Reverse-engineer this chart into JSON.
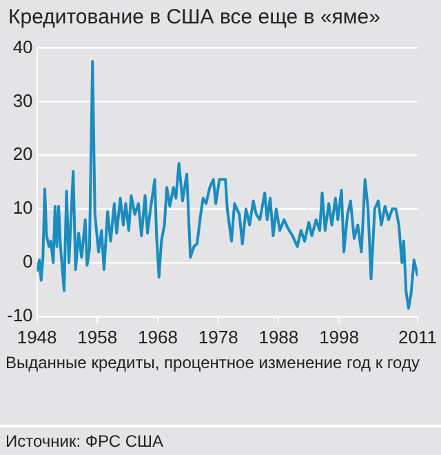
{
  "chart_data": {
    "type": "line",
    "title": "Кредитование в США все еще в «яме»",
    "xlabel": "Выданные кредиты, процентное изменение год к году",
    "annotations": [
      "Источник: ФРС США"
    ],
    "xlim": [
      1948,
      2011
    ],
    "xticks": [
      1948,
      1958,
      1968,
      1978,
      1988,
      1998,
      2011
    ],
    "ylim": [
      -10,
      40
    ],
    "yticks": [
      -10,
      0,
      10,
      20,
      30,
      40
    ],
    "grid": "y",
    "legend": false,
    "marker": "none",
    "line_style": "solid",
    "series": [
      {
        "color": "#1a8cc0",
        "x": [
          1948.0,
          1948.4,
          1948.7,
          1949.0,
          1949.3,
          1949.6,
          1950.0,
          1950.3,
          1950.7,
          1951.0,
          1951.3,
          1951.6,
          1951.9,
          1952.5,
          1952.9,
          1953.3,
          1954.0,
          1954.4,
          1954.9,
          1955.4,
          1956.0,
          1956.3,
          1956.7,
          1957.2,
          1957.6,
          1958.2,
          1958.7,
          1959.1,
          1959.7,
          1960.2,
          1960.8,
          1961.2,
          1961.8,
          1962.3,
          1962.7,
          1963.2,
          1963.6,
          1964.2,
          1964.8,
          1965.3,
          1965.9,
          1966.3,
          1966.8,
          1967.5,
          1967.8,
          1968.2,
          1968.6,
          1969.1,
          1969.5,
          1970.0,
          1970.6,
          1971.0,
          1971.5,
          1972.1,
          1972.8,
          1973.4,
          1974.0,
          1974.5,
          1975.1,
          1975.5,
          1976.0,
          1976.6,
          1977.2,
          1977.6,
          1978.2,
          1979.2,
          1979.5,
          1980.2,
          1980.7,
          1981.5,
          1982.0,
          1982.6,
          1983.2,
          1983.8,
          1984.3,
          1984.9,
          1985.7,
          1986.1,
          1986.6,
          1987.1,
          1987.6,
          1988.2,
          1988.9,
          1989.5,
          1990.3,
          1991.1,
          1991.7,
          1992.3,
          1993.0,
          1993.5,
          1994.2,
          1994.8,
          1995.2,
          1995.7,
          1996.3,
          1996.8,
          1997.4,
          1997.8,
          1998.4,
          1998.8,
          1999.4,
          1999.9,
          2000.5,
          2001.1,
          2001.7,
          2002.3,
          2002.8,
          2003.3,
          2003.9,
          2004.5,
          2005.0,
          2005.6,
          2006.2,
          2006.8,
          2007.4,
          2007.9,
          2008.4,
          2008.7,
          2009.1,
          2009.5,
          2009.9,
          2010.4,
          2011.0
        ],
        "values": [
          -1.7,
          0.5,
          -3.3,
          1,
          13.7,
          5,
          3,
          4,
          0,
          10.5,
          3,
          10.5,
          3,
          -5.2,
          13.3,
          0,
          17,
          -1.3,
          5.5,
          1,
          8,
          -0.5,
          2.5,
          37.5,
          9,
          2,
          6,
          -1.3,
          9.5,
          4,
          11,
          5.5,
          12,
          7,
          11,
          6,
          12.5,
          9,
          11,
          5,
          12.5,
          5.5,
          10,
          15.5,
          5,
          -2.7,
          4,
          7,
          14,
          10.5,
          14,
          12,
          18.5,
          11.5,
          16.5,
          1,
          3,
          3.5,
          9,
          12,
          11,
          14,
          15.5,
          11,
          15.5,
          15.5,
          10,
          4,
          11,
          9,
          3.5,
          10,
          7,
          11.5,
          9,
          8,
          13,
          8,
          12,
          5,
          10,
          6,
          8,
          6.5,
          5,
          3,
          6,
          4,
          7.5,
          5,
          8,
          6,
          13,
          6,
          11,
          7,
          12,
          8,
          13.5,
          2,
          9,
          11.5,
          4.5,
          7,
          2,
          15.5,
          10,
          -3,
          10,
          11.5,
          7,
          10.5,
          8,
          10,
          10,
          7,
          0,
          4,
          -5.5,
          -8.5,
          -6,
          0.5,
          -2.5
        ]
      }
    ]
  }
}
